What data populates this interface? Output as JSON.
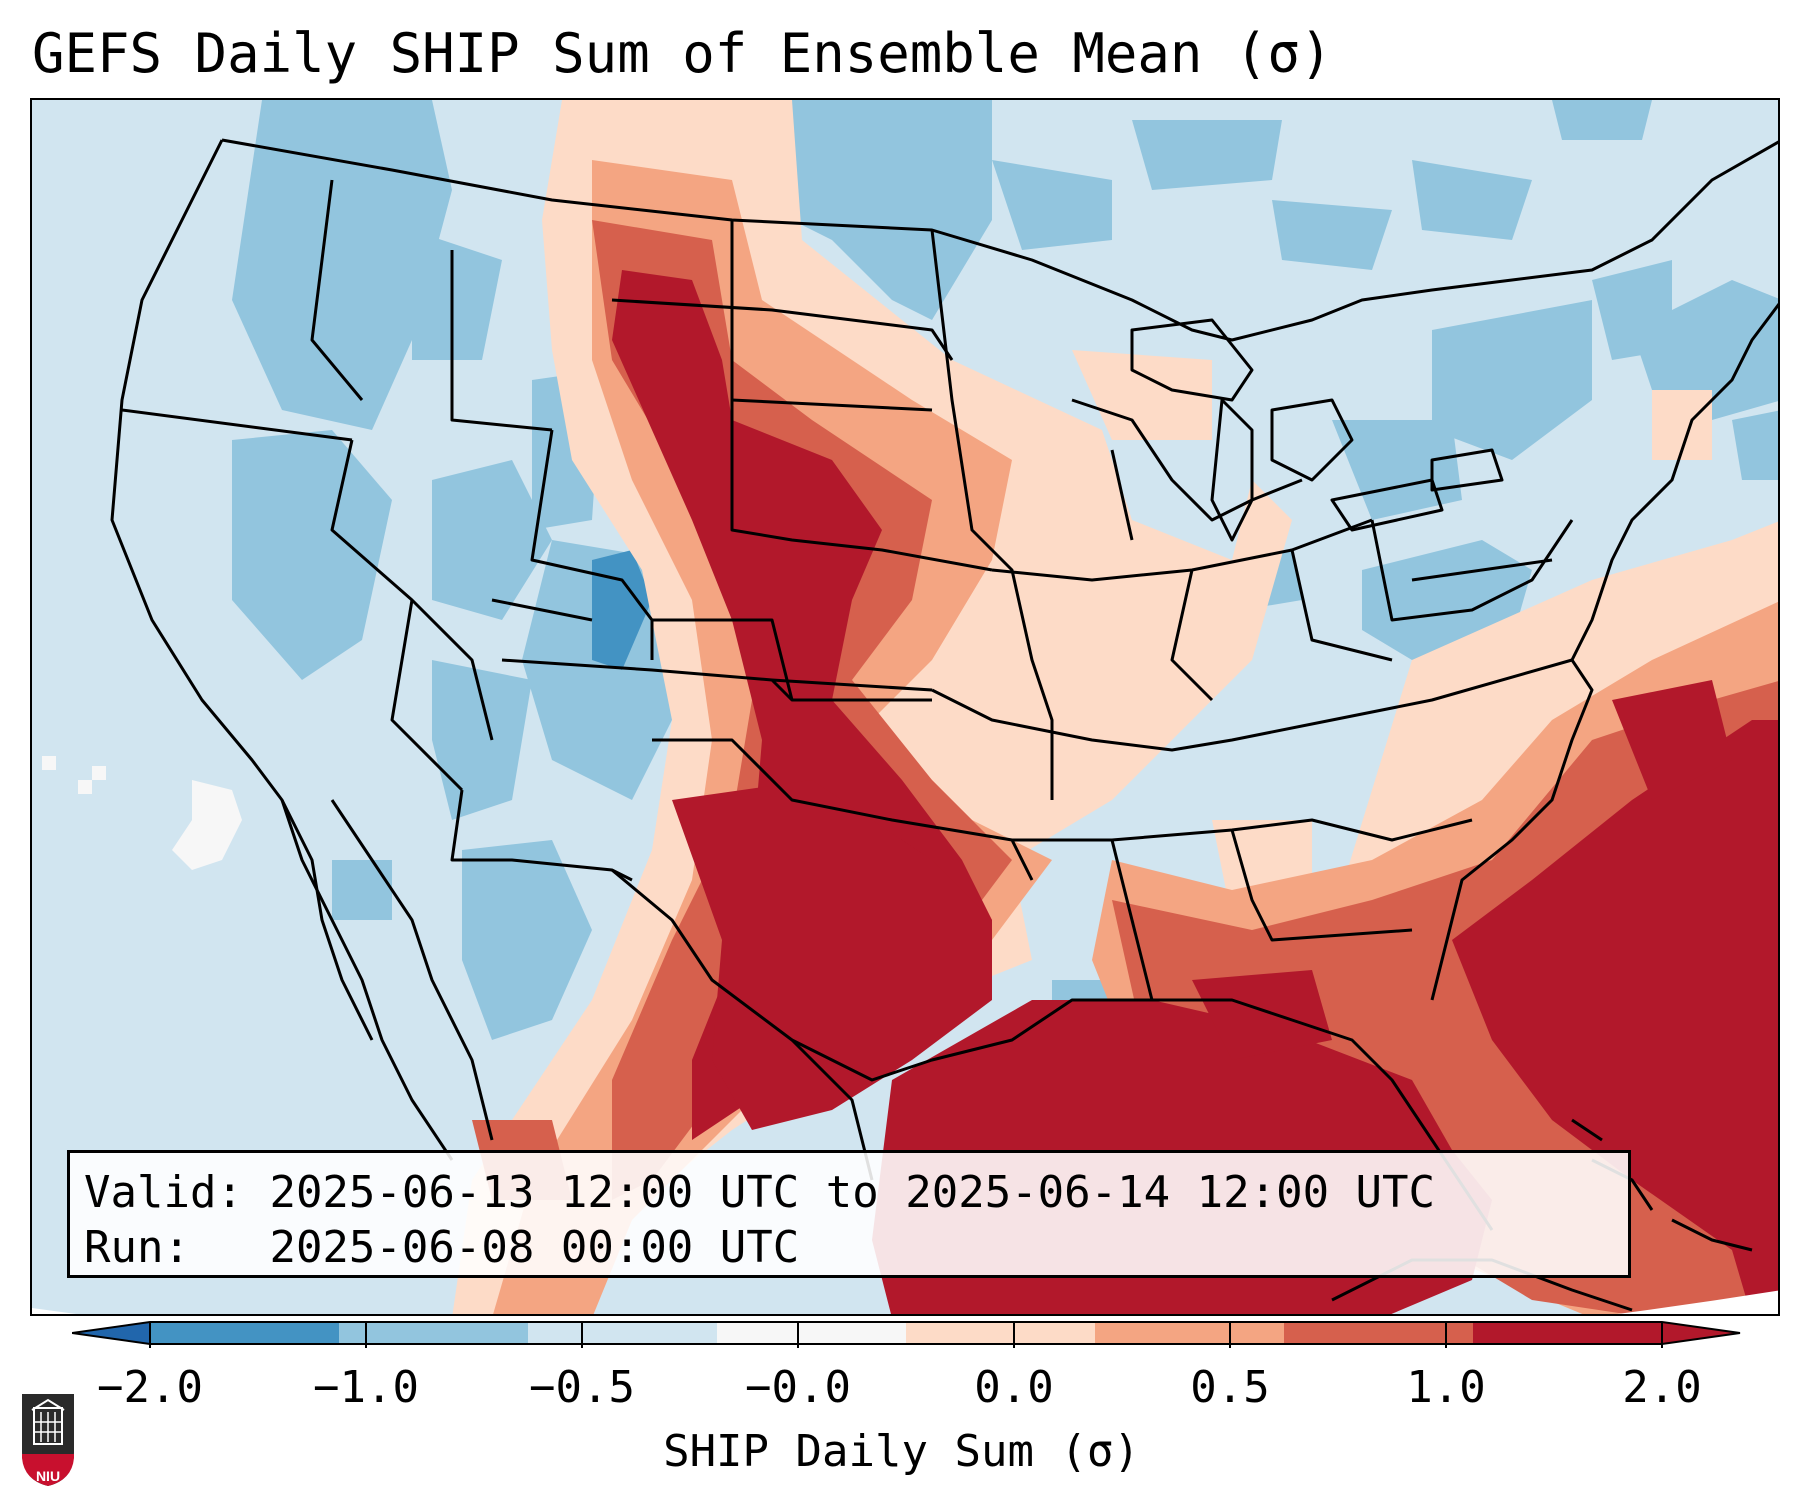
{
  "title": "GEFS Daily SHIP Sum of Ensemble Mean (σ)",
  "info": {
    "valid_label": "Valid:",
    "valid_value": "2025-06-13 12:00 UTC to 2025-06-14 12:00 UTC",
    "run_label": "Run:",
    "run_value": "2025-06-08 00:00 UTC"
  },
  "colorbar": {
    "label": "SHIP Daily Sum (σ)",
    "ticks": [
      "−2.0",
      "−1.0",
      "−0.5",
      "−0.0",
      "0.0",
      "0.5",
      "1.0",
      "2.0"
    ],
    "colors": [
      "#4393c3",
      "#92c5de",
      "#d1e5f0",
      "#f7f7f7",
      "#fddbc7",
      "#f4a582",
      "#d6604d",
      "#b2182b"
    ],
    "under_color": "#2166ac",
    "over_color": "#b2182b"
  },
  "logo": {
    "text": "NIU"
  },
  "map": {
    "region": "Contiguous United States, northern Mexico, Gulf of Mexico and western Atlantic",
    "background_class_color": "#d1e5f0",
    "max_region_color": "#b2182b"
  }
}
